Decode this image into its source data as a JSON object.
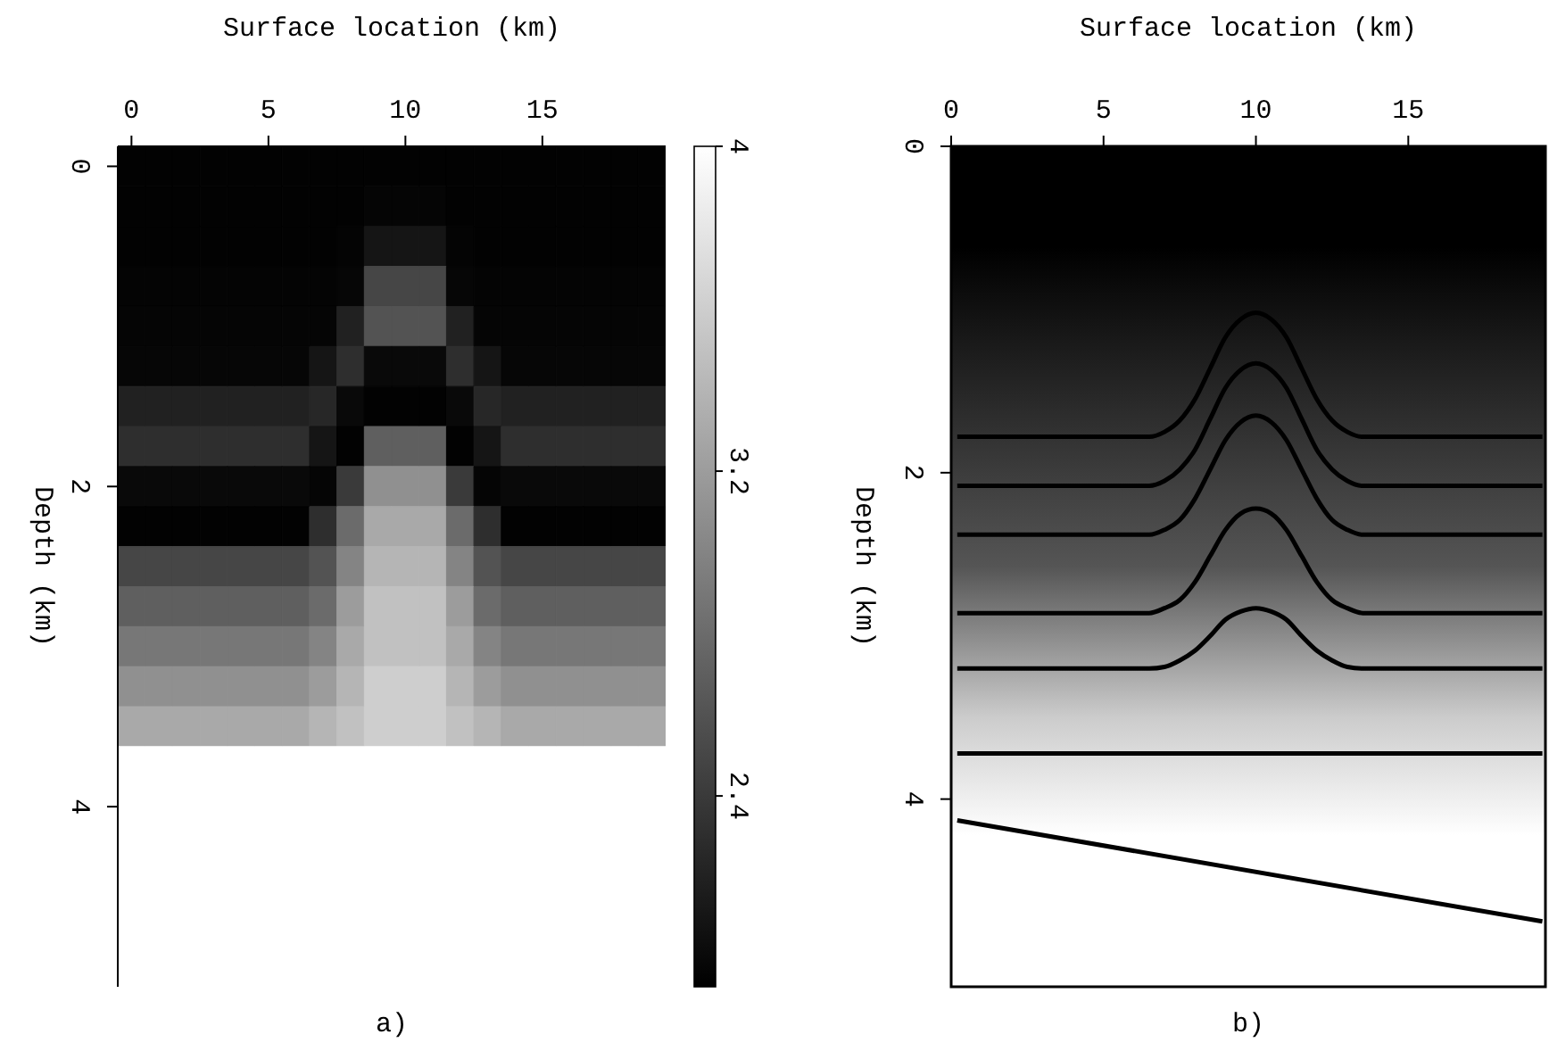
{
  "chart_data": [
    {
      "type": "heatmap",
      "xlabel": "Surface location (km)",
      "ylabel": "Depth (km)",
      "annotations": [
        "a)"
      ],
      "clim": [
        1.93,
        4
      ],
      "cticks": [
        2.4,
        3.2,
        4
      ],
      "categories": [
        "0",
        null,
        null,
        null,
        null,
        "5",
        null,
        null,
        null,
        null,
        "10",
        null,
        null,
        null,
        null,
        "15",
        null,
        null,
        null,
        null
      ],
      "y_categories": [
        "0",
        null,
        null,
        null,
        null,
        null,
        null,
        null,
        "2",
        null,
        null,
        null,
        null,
        null,
        null,
        null,
        "4",
        null,
        null,
        null,
        null
      ],
      "cells": [
        [
          1.95,
          1.95,
          1.95,
          1.95,
          1.95,
          1.95,
          1.95,
          1.95,
          1.95,
          1.95,
          1.95,
          1.95,
          1.95,
          1.95,
          1.95,
          1.95,
          1.95,
          1.95,
          1.95,
          1.95
        ],
        [
          1.95,
          1.95,
          1.95,
          1.95,
          1.95,
          1.95,
          1.95,
          1.95,
          1.95,
          1.97,
          1.97,
          1.97,
          1.95,
          1.95,
          1.95,
          1.95,
          1.95,
          1.95,
          1.95,
          1.95
        ],
        [
          1.95,
          1.95,
          1.95,
          1.95,
          1.95,
          1.95,
          1.95,
          1.95,
          1.96,
          2.1,
          2.1,
          2.1,
          1.96,
          1.95,
          1.95,
          1.95,
          1.95,
          1.95,
          1.95,
          1.95
        ],
        [
          1.96,
          1.96,
          1.96,
          1.96,
          1.96,
          1.96,
          1.96,
          1.96,
          1.98,
          2.5,
          2.5,
          2.5,
          1.98,
          1.96,
          1.96,
          1.96,
          1.96,
          1.96,
          1.96,
          1.96
        ],
        [
          1.97,
          1.97,
          1.97,
          1.97,
          1.97,
          1.97,
          1.97,
          1.97,
          2.2,
          2.6,
          2.6,
          2.6,
          2.2,
          1.97,
          1.97,
          1.97,
          1.97,
          1.97,
          1.97,
          1.97
        ],
        [
          1.98,
          1.98,
          1.98,
          1.98,
          1.98,
          1.98,
          1.98,
          2.1,
          2.3,
          2.0,
          2.0,
          2.0,
          2.3,
          2.1,
          1.98,
          1.98,
          1.98,
          1.98,
          1.98,
          1.98
        ],
        [
          2.2,
          2.2,
          2.2,
          2.2,
          2.2,
          2.2,
          2.2,
          2.25,
          2.0,
          1.95,
          1.95,
          1.95,
          2.0,
          2.25,
          2.2,
          2.2,
          2.2,
          2.2,
          2.2,
          2.2
        ],
        [
          2.3,
          2.3,
          2.3,
          2.3,
          2.3,
          2.3,
          2.3,
          2.1,
          1.95,
          2.7,
          2.7,
          2.7,
          1.95,
          2.1,
          2.3,
          2.3,
          2.3,
          2.3,
          2.3,
          2.3
        ],
        [
          2.0,
          2.0,
          2.0,
          2.0,
          2.0,
          2.0,
          2.0,
          1.97,
          2.4,
          3.1,
          3.1,
          3.1,
          2.4,
          1.97,
          2.0,
          2.0,
          2.0,
          2.0,
          2.0,
          2.0
        ],
        [
          1.95,
          1.95,
          1.95,
          1.95,
          1.95,
          1.95,
          1.95,
          2.3,
          2.8,
          3.3,
          3.3,
          3.3,
          2.8,
          2.3,
          1.95,
          1.95,
          1.95,
          1.95,
          1.95,
          1.95
        ],
        [
          2.5,
          2.5,
          2.5,
          2.5,
          2.5,
          2.5,
          2.5,
          2.6,
          3.0,
          3.4,
          3.4,
          3.4,
          3.0,
          2.6,
          2.5,
          2.5,
          2.5,
          2.5,
          2.5,
          2.5
        ],
        [
          2.7,
          2.7,
          2.7,
          2.7,
          2.7,
          2.7,
          2.7,
          2.8,
          3.2,
          3.5,
          3.5,
          3.5,
          3.2,
          2.8,
          2.7,
          2.7,
          2.7,
          2.7,
          2.7,
          2.7
        ],
        [
          2.9,
          2.9,
          2.9,
          2.9,
          2.9,
          2.9,
          2.9,
          3.0,
          3.3,
          3.5,
          3.5,
          3.5,
          3.3,
          3.0,
          2.9,
          2.9,
          2.9,
          2.9,
          2.9,
          2.9
        ],
        [
          3.1,
          3.1,
          3.1,
          3.1,
          3.1,
          3.1,
          3.1,
          3.2,
          3.4,
          3.6,
          3.6,
          3.6,
          3.4,
          3.2,
          3.1,
          3.1,
          3.1,
          3.1,
          3.1,
          3.1
        ],
        [
          3.3,
          3.3,
          3.3,
          3.3,
          3.3,
          3.3,
          3.3,
          3.4,
          3.5,
          3.6,
          3.6,
          3.6,
          3.5,
          3.4,
          3.3,
          3.3,
          3.3,
          3.3,
          3.3,
          3.3
        ],
        [
          4,
          4,
          4,
          4,
          4,
          4,
          4,
          4,
          4,
          4,
          4,
          4,
          4,
          4,
          4,
          4,
          4,
          4,
          4,
          4
        ],
        [
          4,
          4,
          4,
          4,
          4,
          4,
          4,
          4,
          4,
          4,
          4,
          4,
          4,
          4,
          4,
          4,
          4,
          4,
          4,
          4
        ],
        [
          4,
          4,
          4,
          4,
          4,
          4,
          4,
          4,
          4,
          4,
          4,
          4,
          4,
          4,
          4,
          4,
          4,
          4,
          4,
          4
        ],
        [
          4,
          4,
          4,
          4,
          4,
          4,
          4,
          4,
          4,
          4,
          4,
          4,
          4,
          4,
          4,
          4,
          4,
          4,
          4,
          4
        ],
        [
          4,
          4,
          4,
          4,
          4,
          4,
          4,
          4,
          4,
          4,
          4,
          4,
          4,
          4,
          4,
          4,
          4,
          4,
          4,
          4
        ],
        [
          4,
          4,
          4,
          4,
          4,
          4,
          4,
          4,
          4,
          4,
          4,
          4,
          4,
          4,
          4,
          4,
          4,
          4,
          4,
          4
        ]
      ]
    },
    {
      "type": "line",
      "xlabel": "Surface location (km)",
      "ylabel": "Depth (km)",
      "annotations": [
        "b)"
      ],
      "xlim": [
        0,
        19.5
      ],
      "ylim": [
        5.15,
        0
      ],
      "xticks": [
        0,
        5,
        10,
        15
      ],
      "yticks": [
        0,
        2,
        4
      ],
      "series": [
        {
          "color": "#000000",
          "x": [
            0.2,
            6.5,
            7,
            7.5,
            8,
            8.5,
            9,
            9.5,
            10,
            10.5,
            11,
            11.5,
            12,
            12.5,
            13,
            13.5,
            19.4
          ],
          "values": [
            1.78,
            1.78,
            1.75,
            1.68,
            1.55,
            1.36,
            1.17,
            1.06,
            1.02,
            1.06,
            1.17,
            1.36,
            1.55,
            1.68,
            1.75,
            1.78,
            1.78
          ]
        },
        {
          "color": "#000000",
          "x": [
            0.2,
            6.5,
            7,
            7.5,
            8,
            8.5,
            9,
            9.5,
            10,
            10.5,
            11,
            11.5,
            12,
            12.5,
            13,
            13.5,
            19.4
          ],
          "values": [
            2.08,
            2.08,
            2.05,
            1.98,
            1.86,
            1.67,
            1.48,
            1.37,
            1.33,
            1.37,
            1.48,
            1.67,
            1.86,
            1.98,
            2.05,
            2.08,
            2.08
          ]
        },
        {
          "color": "#000000",
          "x": [
            0.2,
            6.5,
            7,
            7.5,
            8,
            8.5,
            9,
            9.5,
            10,
            10.5,
            11,
            11.5,
            12,
            12.5,
            13,
            13.5,
            19.4
          ],
          "values": [
            2.38,
            2.38,
            2.35,
            2.29,
            2.16,
            1.98,
            1.8,
            1.69,
            1.65,
            1.69,
            1.8,
            1.98,
            2.16,
            2.29,
            2.35,
            2.38,
            2.38
          ]
        },
        {
          "color": "#000000",
          "x": [
            0.2,
            6.5,
            7,
            7.5,
            8,
            8.5,
            9,
            9.5,
            10,
            10.5,
            11,
            11.5,
            12,
            12.5,
            13,
            13.5,
            19.4
          ],
          "values": [
            2.86,
            2.86,
            2.83,
            2.78,
            2.67,
            2.51,
            2.35,
            2.25,
            2.22,
            2.25,
            2.35,
            2.51,
            2.67,
            2.78,
            2.83,
            2.86,
            2.86
          ]
        },
        {
          "color": "#000000",
          "x": [
            0.2,
            6.5,
            7,
            7.5,
            8,
            8.5,
            9,
            9.5,
            10,
            10.5,
            11,
            11.5,
            12,
            12.5,
            13,
            13.5,
            19.4
          ],
          "values": [
            3.2,
            3.2,
            3.19,
            3.15,
            3.09,
            3.0,
            2.9,
            2.85,
            2.83,
            2.85,
            2.9,
            3.0,
            3.09,
            3.15,
            3.19,
            3.2,
            3.2
          ]
        },
        {
          "color": "#000000",
          "x": [
            0.2,
            19.4
          ],
          "values": [
            3.72,
            3.72
          ]
        },
        {
          "color": "#000000",
          "x": [
            0.2,
            19.4
          ],
          "values": [
            4.13,
            4.75
          ]
        }
      ]
    }
  ]
}
